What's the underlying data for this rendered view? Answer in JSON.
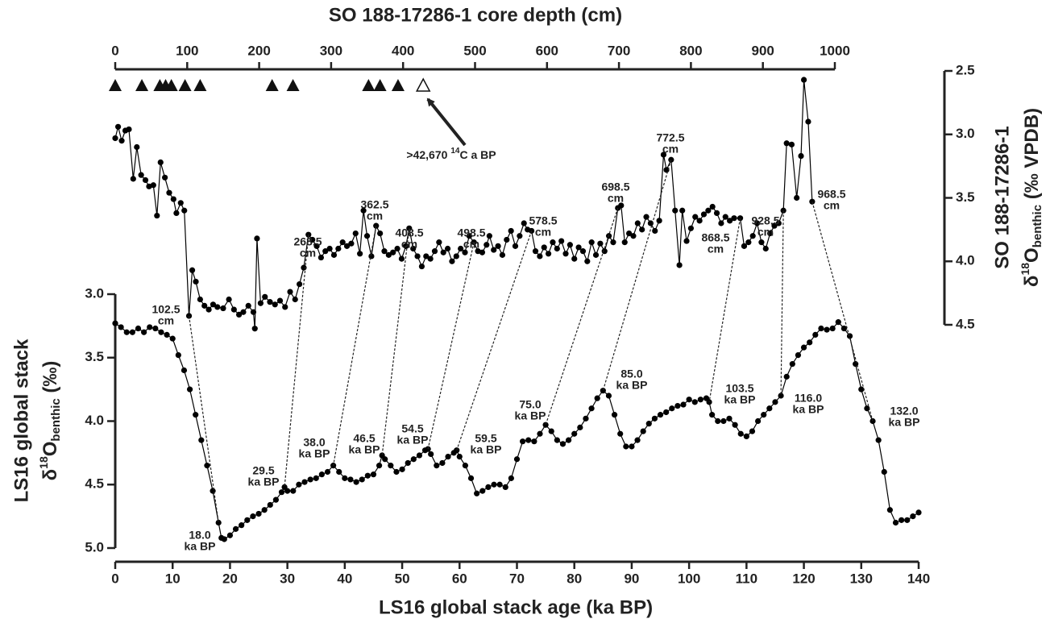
{
  "chart_data": [
    {
      "type": "line",
      "xlabel": "SO 188-17286-1 core depth (cm)",
      "ylabel": "SO 188-17286-1",
      "ylabel2": [
        "δ",
        "18",
        "O",
        "benthic",
        " (‰ VPDB)"
      ],
      "xlim": [
        0,
        1000
      ],
      "xticks": [
        0,
        100,
        200,
        300,
        400,
        500,
        600,
        700,
        800,
        900,
        1000
      ],
      "ylim": [
        2.5,
        4.5
      ],
      "y_inverted": true,
      "yticks": [
        2.5,
        {
          "value": 3,
          "label": "3.0"
        },
        3.5,
        {
          "value": 4,
          "label": "4.0"
        },
        4.5
      ],
      "x": [
        0,
        4,
        9,
        14,
        19,
        25,
        30,
        36,
        42,
        47,
        53,
        58,
        63,
        69,
        75,
        81,
        85,
        91,
        96,
        102.5,
        107,
        112,
        118,
        124,
        130,
        136,
        142,
        150,
        158,
        165,
        172,
        178,
        185,
        192,
        194,
        197,
        202,
        208,
        215,
        222,
        229,
        236,
        243,
        250,
        256,
        262,
        268.5,
        274,
        280,
        286,
        292,
        298,
        304,
        310,
        316,
        322,
        328,
        334,
        340,
        345,
        350,
        356,
        362.5,
        368,
        374,
        380,
        386,
        392,
        398,
        404,
        408.5,
        414,
        420,
        426,
        432,
        438,
        444,
        450,
        456,
        462,
        468,
        474,
        480,
        486,
        492,
        498.5,
        504,
        510,
        516,
        520,
        526,
        532,
        538,
        544,
        550,
        556,
        562,
        568,
        573,
        578.5,
        584,
        590,
        596,
        602,
        608,
        614,
        620,
        626,
        632,
        638,
        644,
        650,
        656,
        662,
        668,
        674,
        680,
        686,
        692,
        698.5,
        703,
        708,
        714,
        720,
        726,
        732,
        738,
        744,
        750,
        756,
        762,
        766,
        772.5,
        778,
        784,
        788,
        794,
        800,
        806,
        812,
        818,
        824,
        830,
        836,
        842,
        848,
        854,
        860,
        868.5,
        874,
        880,
        886,
        892,
        898,
        904,
        910,
        916,
        922,
        928.5,
        933,
        940,
        947,
        953,
        957,
        963,
        968.5
      ],
      "series": [
        {
          "color": "#000000",
          "values": [
            3.03,
            2.94,
            3.05,
            2.97,
            2.96,
            3.35,
            3.1,
            3.32,
            3.36,
            3.41,
            3.4,
            3.64,
            3.22,
            3.34,
            3.46,
            3.51,
            3.62,
            3.54,
            3.6,
            4.43,
            4.07,
            4.16,
            4.3,
            4.35,
            4.38,
            4.34,
            4.36,
            4.37,
            4.3,
            4.38,
            4.42,
            4.4,
            4.35,
            4.4,
            4.53,
            3.82,
            4.33,
            4.28,
            4.32,
            4.34,
            4.31,
            4.36,
            4.24,
            4.3,
            4.18,
            4.05,
            3.79,
            3.83,
            3.88,
            3.97,
            3.92,
            3.9,
            3.95,
            3.9,
            3.85,
            3.88,
            3.86,
            3.78,
            3.94,
            3.6,
            3.8,
            3.96,
            3.72,
            3.78,
            3.92,
            3.95,
            3.93,
            3.9,
            3.98,
            3.88,
            3.74,
            3.9,
            3.96,
            4.04,
            3.96,
            3.98,
            3.92,
            3.85,
            3.93,
            3.9,
            4.0,
            3.96,
            3.9,
            3.93,
            3.8,
            3.85,
            3.92,
            3.93,
            3.87,
            3.8,
            3.91,
            3.88,
            3.95,
            3.83,
            3.76,
            3.88,
            3.8,
            3.7,
            3.75,
            3.76,
            3.92,
            3.96,
            3.89,
            3.94,
            3.85,
            3.9,
            3.84,
            3.94,
            3.87,
            3.98,
            3.89,
            3.92,
            4.0,
            3.85,
            3.95,
            3.86,
            3.92,
            3.8,
            3.85,
            3.58,
            3.56,
            3.85,
            3.78,
            3.8,
            3.7,
            3.75,
            3.65,
            3.7,
            3.76,
            3.68,
            3.16,
            3.28,
            3.2,
            3.6,
            4.03,
            3.6,
            3.84,
            3.74,
            3.65,
            3.68,
            3.63,
            3.6,
            3.57,
            3.62,
            3.7,
            3.65,
            3.68,
            3.66,
            3.66,
            3.88,
            3.85,
            3.8,
            3.7,
            3.85,
            3.9,
            3.78,
            3.72,
            3.7,
            3.6,
            3.07,
            3.08,
            3.5,
            3.17,
            2.57,
            2.9,
            3.53
          ]
        }
      ],
      "dated_depths": [
        0,
        37,
        62,
        70,
        78,
        97,
        118,
        218,
        247,
        352,
        368,
        393
      ],
      "undated_depths": [
        428
      ],
      "annotation": [
        ">42,670 ",
        "14",
        "C a BP"
      ],
      "tie_depths": [
        102.5,
        268.5,
        362.5,
        408.5,
        498.5,
        578.5,
        698.5,
        772.5,
        868.5,
        928.5,
        968.5
      ],
      "tie_labels": [
        [
          "102.5",
          "cm"
        ],
        [
          "268.5",
          "cm"
        ],
        [
          "362.5",
          "cm"
        ],
        [
          "408.5",
          "cm"
        ],
        [
          "498.5",
          "cm"
        ],
        [
          "578.5",
          "cm"
        ],
        [
          "698.5",
          "cm"
        ],
        [
          "772.5",
          "cm"
        ],
        [
          "868.5",
          "cm"
        ],
        [
          "928.5",
          "cm"
        ],
        [
          "968.5",
          "cm"
        ]
      ]
    },
    {
      "type": "line",
      "xlabel": "LS16 global stack age (ka BP)",
      "ylabel": "LS16 global stack",
      "ylabel2": [
        "δ",
        "18",
        "O",
        "benthic",
        " (‰)"
      ],
      "xlim": [
        0,
        140
      ],
      "xticks": [
        0,
        10,
        20,
        30,
        40,
        50,
        60,
        70,
        80,
        90,
        100,
        110,
        120,
        130,
        140
      ],
      "ylim": [
        3,
        5
      ],
      "y_inverted": true,
      "yticks": [
        {
          "value": 3,
          "label": "3.0"
        },
        3.5,
        {
          "value": 4,
          "label": "4.0"
        },
        4.5,
        {
          "value": 5,
          "label": "5.0"
        }
      ],
      "x": [
        0,
        1,
        2,
        3,
        4,
        5,
        6,
        7,
        8,
        9,
        10,
        11,
        12,
        13,
        14,
        15,
        16,
        17,
        18,
        18.5,
        19,
        20,
        21,
        22,
        23,
        24,
        25,
        26,
        27,
        28,
        29,
        29.5,
        30,
        31,
        32,
        33,
        34,
        35,
        36,
        37,
        38,
        39,
        40,
        41,
        42,
        43,
        44,
        45,
        46,
        46.5,
        47,
        48,
        49,
        50,
        51,
        52,
        53,
        54,
        54.5,
        55,
        56,
        57,
        58,
        59,
        59.5,
        60,
        61,
        62,
        63,
        64,
        65,
        66,
        67,
        68,
        69,
        70,
        71,
        72,
        73,
        74,
        75,
        76,
        77,
        78,
        79,
        80,
        81,
        82,
        83,
        84,
        85,
        86,
        87,
        88,
        89,
        90,
        91,
        92,
        93,
        94,
        95,
        96,
        97,
        98,
        99,
        100,
        101,
        102,
        103,
        103.5,
        104,
        105,
        106,
        107,
        108,
        109,
        110,
        111,
        112,
        113,
        114,
        115,
        116,
        117,
        118,
        119,
        120,
        121,
        122,
        123,
        124,
        125,
        126,
        127,
        128,
        129,
        130,
        131,
        132,
        133,
        134,
        135,
        136,
        137,
        138,
        139,
        140
      ],
      "series": [
        {
          "color": "#000000",
          "values": [
            3.23,
            3.26,
            3.3,
            3.3,
            3.27,
            3.3,
            3.26,
            3.27,
            3.3,
            3.32,
            3.35,
            3.48,
            3.6,
            3.75,
            3.95,
            4.15,
            4.35,
            4.55,
            4.8,
            4.92,
            4.93,
            4.9,
            4.85,
            4.82,
            4.78,
            4.75,
            4.73,
            4.7,
            4.66,
            4.62,
            4.56,
            4.52,
            4.55,
            4.55,
            4.5,
            4.48,
            4.46,
            4.45,
            4.42,
            4.4,
            4.35,
            4.4,
            4.45,
            4.46,
            4.48,
            4.46,
            4.43,
            4.42,
            4.35,
            4.27,
            4.3,
            4.35,
            4.4,
            4.38,
            4.33,
            4.3,
            4.27,
            4.23,
            4.22,
            4.26,
            4.35,
            4.33,
            4.28,
            4.25,
            4.23,
            4.28,
            4.35,
            4.45,
            4.57,
            4.55,
            4.52,
            4.5,
            4.5,
            4.52,
            4.45,
            4.3,
            4.16,
            4.15,
            4.16,
            4.1,
            4.03,
            4.08,
            4.15,
            4.18,
            4.15,
            4.1,
            4.05,
            3.98,
            3.9,
            3.82,
            3.76,
            3.8,
            3.95,
            4.1,
            4.2,
            4.2,
            4.15,
            4.08,
            4.02,
            3.98,
            3.95,
            3.93,
            3.9,
            3.88,
            3.87,
            3.83,
            3.85,
            3.83,
            3.82,
            3.85,
            3.95,
            4.0,
            4.0,
            3.98,
            4.03,
            4.1,
            4.12,
            4.08,
            4.0,
            3.95,
            3.9,
            3.85,
            3.8,
            3.65,
            3.55,
            3.48,
            3.42,
            3.38,
            3.32,
            3.27,
            3.28,
            3.27,
            3.22,
            3.27,
            3.33,
            3.55,
            3.75,
            3.9,
            4.0,
            4.15,
            4.4,
            4.7,
            4.8,
            4.78,
            4.78,
            4.75,
            4.72
          ]
        }
      ],
      "tie_ages": [
        18.0,
        29.5,
        38.0,
        46.5,
        54.5,
        59.5,
        75.0,
        85.0,
        103.5,
        116.0,
        132.0
      ],
      "tie_labels": [
        [
          "18.0",
          "ka BP"
        ],
        [
          "29.5",
          "ka BP"
        ],
        [
          "38.0",
          "ka BP"
        ],
        [
          "46.5",
          "ka BP"
        ],
        [
          "54.5",
          "ka BP"
        ],
        [
          "59.5",
          "ka BP"
        ],
        [
          "75.0",
          "ka BP"
        ],
        [
          "85.0",
          "ka BP"
        ],
        [
          "103.5",
          "ka BP"
        ],
        [
          "116.0",
          "ka BP"
        ],
        [
          "132.0",
          "ka BP"
        ]
      ]
    }
  ]
}
